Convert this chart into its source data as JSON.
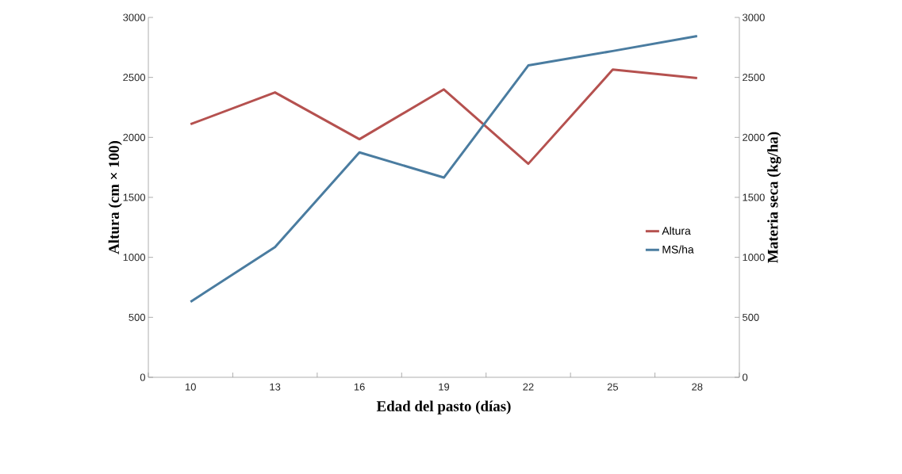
{
  "chart_data": {
    "type": "line",
    "xlabel": "Edad del pasto (días)",
    "ylabel": "Altura (cm × 100)",
    "y2label": "Materia seca (kg/ha)",
    "categories": [
      "10",
      "13",
      "16",
      "19",
      "22",
      "25",
      "28"
    ],
    "series": [
      {
        "name": "Altura",
        "color": "#b5514f",
        "values": [
          2110,
          2375,
          1985,
          2400,
          1780,
          2565,
          2495
        ]
      },
      {
        "name": "MS/ha",
        "color": "#4a7ca0",
        "axis": "y2",
        "values": [
          630,
          1085,
          1875,
          1665,
          2600,
          2720,
          2845
        ]
      }
    ],
    "ylim": [
      0,
      3000
    ],
    "yticks": [
      0,
      500,
      1000,
      1500,
      2000,
      2500,
      3000
    ],
    "y2lim": [
      0,
      3000
    ],
    "y2ticks": [
      0,
      500,
      1000,
      1500,
      2000,
      2500,
      3000
    ],
    "legend": "right",
    "marker": "none",
    "line_style": "solid"
  }
}
